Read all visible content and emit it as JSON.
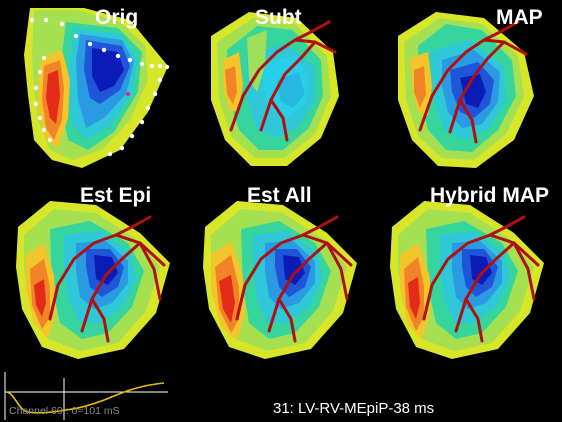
{
  "panels": [
    {
      "title": "Orig"
    },
    {
      "title": "Subt"
    },
    {
      "title": "MAP"
    },
    {
      "title": "Est Epi"
    },
    {
      "title": "Est All"
    },
    {
      "title": "Hybrid MAP"
    }
  ],
  "trace": {
    "label": "Channel 69 : 0=101 mS",
    "color": "#e8c000"
  },
  "frame": {
    "label": "31: LV-RV-MEpiP-38 ms"
  },
  "colors": {
    "background": "#000000",
    "title": "#ffffff",
    "vessels": "#b01010"
  }
}
